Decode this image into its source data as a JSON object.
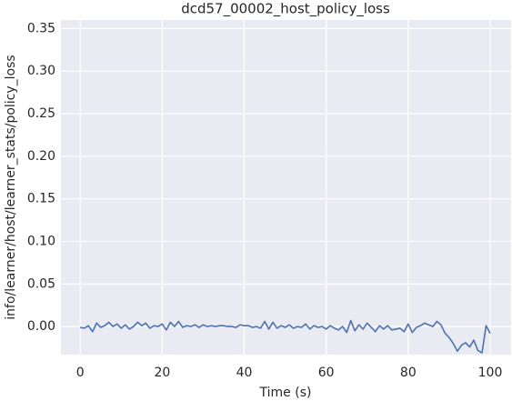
{
  "chart_data": {
    "type": "line",
    "title": "dcd57_00002_host_policy_loss",
    "xlabel": "Time (s)",
    "ylabel": "info/learner/host/learner_stats/policy_loss",
    "x": [
      0,
      1,
      2,
      3,
      4,
      5,
      6,
      7,
      8,
      9,
      10,
      11,
      12,
      13,
      14,
      15,
      16,
      17,
      18,
      19,
      20,
      21,
      22,
      23,
      24,
      25,
      26,
      27,
      28,
      29,
      30,
      31,
      32,
      33,
      34,
      35,
      36,
      37,
      38,
      39,
      40,
      41,
      42,
      43,
      44,
      45,
      46,
      47,
      48,
      49,
      50,
      51,
      52,
      53,
      54,
      55,
      56,
      57,
      58,
      59,
      60,
      61,
      62,
      63,
      64,
      65,
      66,
      67,
      68,
      69,
      70,
      71,
      72,
      73,
      74,
      75,
      76,
      77,
      78,
      79,
      80,
      81,
      82,
      83,
      84,
      85,
      86,
      87,
      88,
      89,
      90,
      91,
      92,
      93,
      94,
      95,
      96,
      97,
      98,
      99,
      100
    ],
    "series": [
      {
        "color": "#4c72b0",
        "values": [
          -0.001,
          -0.002,
          0.001,
          -0.006,
          0.004,
          -0.001,
          0.001,
          0.005,
          0.0,
          0.003,
          -0.002,
          0.002,
          -0.003,
          0.0,
          0.005,
          0.001,
          0.004,
          -0.002,
          0.001,
          0.0,
          0.003,
          -0.004,
          0.005,
          0.0,
          0.006,
          -0.001,
          0.001,
          0.0,
          0.002,
          -0.001,
          0.002,
          0.0,
          0.001,
          0.0,
          0.001,
          0.001,
          0.0,
          0.0,
          -0.001,
          0.002,
          0.001,
          0.001,
          -0.001,
          0.0,
          -0.002,
          0.006,
          -0.003,
          0.005,
          -0.002,
          0.001,
          -0.001,
          0.002,
          -0.002,
          0.0,
          -0.001,
          0.003,
          -0.003,
          0.001,
          -0.001,
          0.0,
          -0.003,
          0.001,
          -0.002,
          -0.004,
          0.0,
          -0.007,
          0.007,
          -0.005,
          0.002,
          -0.003,
          0.004,
          -0.001,
          -0.006,
          0.001,
          -0.003,
          0.001,
          -0.004,
          -0.003,
          -0.002,
          -0.006,
          0.003,
          -0.007,
          -0.001,
          0.001,
          0.004,
          0.002,
          0.0,
          0.006,
          0.002,
          -0.008,
          -0.013,
          -0.02,
          -0.029,
          -0.022,
          -0.019,
          -0.024,
          -0.016,
          -0.028,
          -0.031,
          0.001,
          -0.008
        ]
      }
    ],
    "xlim": [
      -4.7,
      105.1
    ],
    "xticks": [
      0,
      20,
      40,
      60,
      80,
      100
    ],
    "ylim": [
      -0.033,
      0.36
    ],
    "yticks": [
      {
        "value": 0,
        "label": "0.00"
      },
      {
        "value": 0.05,
        "label": "0.05"
      },
      {
        "value": 0.1,
        "label": "0.10"
      },
      {
        "value": 0.15,
        "label": "0.15"
      },
      {
        "value": 0.2,
        "label": "0.20"
      },
      {
        "value": 0.25,
        "label": "0.25"
      },
      {
        "value": 0.3,
        "label": "0.30"
      },
      {
        "value": 0.35,
        "label": "0.35"
      }
    ],
    "grid": true
  }
}
